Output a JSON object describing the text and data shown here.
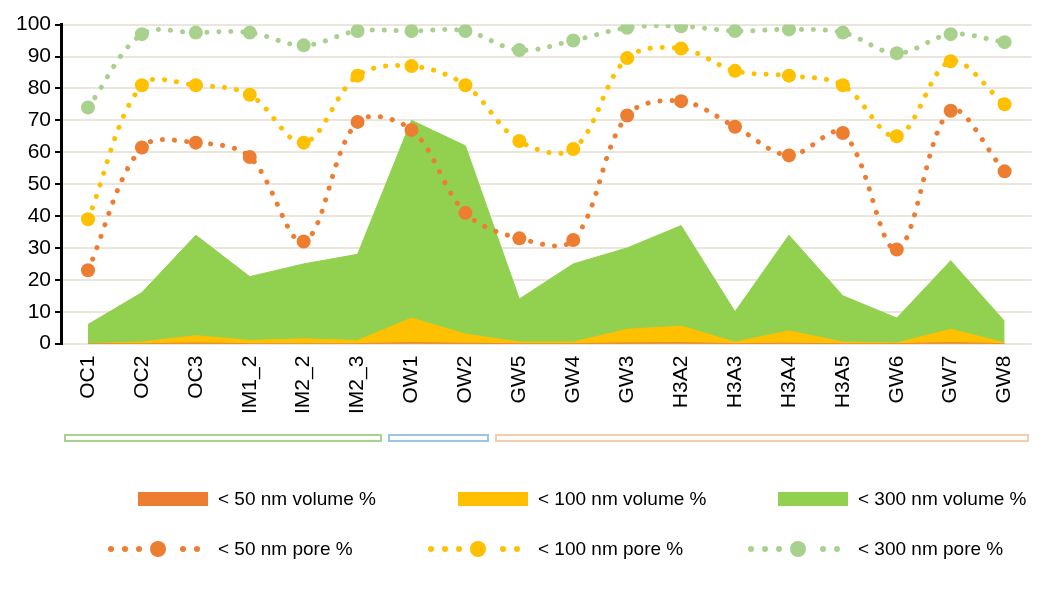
{
  "chart_data": {
    "type": "area",
    "categories": [
      "OC1",
      "OC2",
      "OC3",
      "IM1_2",
      "IM2_2",
      "IM2_3",
      "OW1",
      "OW2",
      "GW5",
      "GW4",
      "GW3",
      "H3A2",
      "H3A3",
      "H3A4",
      "H3A5",
      "GW6",
      "GW7",
      "GW8"
    ],
    "series": [
      {
        "name": "< 50 nm volume %",
        "color": "#ed7d31",
        "values": [
          0,
          0,
          0.2,
          0,
          0,
          0,
          0.3,
          0.1,
          0,
          0,
          0.2,
          0.3,
          0,
          0.1,
          0,
          0,
          0.3,
          0
        ]
      },
      {
        "name": "< 100 nm volume %",
        "color": "#ffc000",
        "values": [
          0,
          0.5,
          2.5,
          1,
          1.5,
          1,
          8,
          3,
          0.5,
          0.5,
          4.5,
          5.5,
          0.5,
          4,
          0.5,
          0.2,
          4.5,
          0.3
        ]
      },
      {
        "name": "< 300 nm volume %",
        "color": "#92d050",
        "values": [
          6,
          16,
          34,
          21,
          25,
          28,
          70,
          62,
          14,
          25,
          30,
          37,
          10,
          34,
          15,
          8,
          26,
          7
        ]
      },
      {
        "name": "< 50 nm pore %",
        "type": "line",
        "color": "#ed7d31",
        "marker": "circle",
        "line_style": "dotted",
        "values": [
          23,
          61.5,
          63,
          58.5,
          32,
          69.5,
          67,
          41,
          33,
          32.5,
          71.5,
          76,
          68,
          59,
          66,
          29.5,
          73,
          54
        ]
      },
      {
        "name": "< 100 nm pore %",
        "type": "line",
        "color": "#ffc000",
        "marker": "circle",
        "line_style": "dotted",
        "values": [
          39,
          81,
          81,
          78,
          63,
          84,
          87,
          81,
          63.5,
          61,
          89.5,
          92.5,
          85.5,
          84,
          81,
          65,
          88.5,
          75
        ]
      },
      {
        "name": "< 300 nm pore %",
        "type": "line",
        "color": "#a9d18e",
        "marker": "circle",
        "line_style": "dotted",
        "values": [
          74,
          97,
          97.5,
          97.5,
          93.5,
          98,
          98,
          98,
          92,
          95,
          99,
          99.5,
          98,
          98.5,
          97.5,
          91,
          97,
          94.5
        ]
      }
    ],
    "ylim": [
      0,
      100
    ],
    "yticks": [
      0,
      10,
      20,
      30,
      40,
      50,
      60,
      70,
      80,
      90,
      100
    ],
    "grid": "y",
    "legend": "bottom"
  }
}
